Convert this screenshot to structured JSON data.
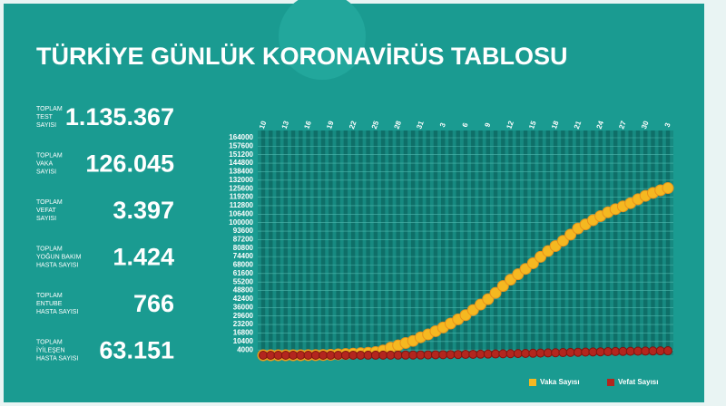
{
  "header": {
    "title": "TÜRKİYE GÜNLÜK KORONAVİRÜS TABLOSU"
  },
  "stats": [
    {
      "label": [
        "TOPLAM",
        "TEST",
        "SAYISI"
      ],
      "value": "1.135.367"
    },
    {
      "label": [
        "TOPLAM",
        "VAKA",
        "SAYISI"
      ],
      "value": "126.045"
    },
    {
      "label": [
        "TOPLAM",
        "VEFAT",
        "SAYISI"
      ],
      "value": "3.397"
    },
    {
      "label": [
        "TOPLAM",
        "YOĞUN BAKIM",
        "HASTA SAYISI"
      ],
      "value": "1.424"
    },
    {
      "label": [
        "TOPLAM",
        "ENTUBE",
        "HASTA SAYISI"
      ],
      "value": "766"
    },
    {
      "label": [
        "TOPLAM",
        "İYİLEŞEN",
        "HASTA SAYISI"
      ],
      "value": "63.151"
    }
  ],
  "chart_data": {
    "type": "scatter",
    "categories": [
      "10",
      null,
      null,
      "13",
      null,
      null,
      "16",
      null,
      null,
      "19",
      null,
      null,
      "22",
      null,
      null,
      "25",
      null,
      null,
      "28",
      null,
      null,
      "31",
      null,
      null,
      "3",
      null,
      null,
      "6",
      null,
      null,
      "9",
      null,
      null,
      "12",
      null,
      null,
      "15",
      null,
      null,
      "18",
      null,
      null,
      "21",
      null,
      null,
      "24",
      null,
      null,
      "27",
      null,
      null,
      "30",
      null,
      null,
      "3"
    ],
    "series": [
      {
        "name": "Vaka Sayısı",
        "color": "#f5b821",
        "values": [
          0,
          1,
          1,
          5,
          6,
          18,
          47,
          98,
          191,
          359,
          670,
          947,
          1236,
          1529,
          1872,
          2433,
          3629,
          5698,
          7402,
          9217,
          10827,
          13531,
          15679,
          18135,
          20921,
          23934,
          27069,
          30217,
          34109,
          38226,
          42282,
          47029,
          52167,
          56956,
          61049,
          65111,
          69392,
          74193,
          78546,
          82329,
          86306,
          90980,
          95591,
          98674,
          101790,
          104912,
          107773,
          110130,
          112261,
          114653,
          117589,
          120204,
          122392,
          124375,
          126045
        ]
      },
      {
        "name": "Vefat Sayısı",
        "color": "#b3261e",
        "values": [
          0,
          0,
          0,
          0,
          0,
          0,
          0,
          1,
          2,
          4,
          9,
          21,
          30,
          37,
          44,
          59,
          75,
          92,
          108,
          131,
          168,
          214,
          277,
          356,
          425,
          501,
          574,
          649,
          725,
          812,
          908,
          1006,
          1101,
          1198,
          1296,
          1403,
          1518,
          1643,
          1769,
          1890,
          2017,
          2140,
          2259,
          2376,
          2491,
          2600,
          2706,
          2805,
          2900,
          2992,
          3081,
          3174,
          3258,
          3336,
          3397
        ]
      }
    ],
    "ylim": [
      0,
      164000
    ],
    "yticks": [
      4000,
      10400,
      16800,
      23200,
      29600,
      36000,
      42400,
      48800,
      55200,
      61600,
      68000,
      74400,
      80800,
      87200,
      93600,
      100000,
      106400,
      112800,
      119200,
      125600,
      132000,
      138400,
      144800,
      151200,
      157600,
      164000
    ],
    "grid": true
  }
}
